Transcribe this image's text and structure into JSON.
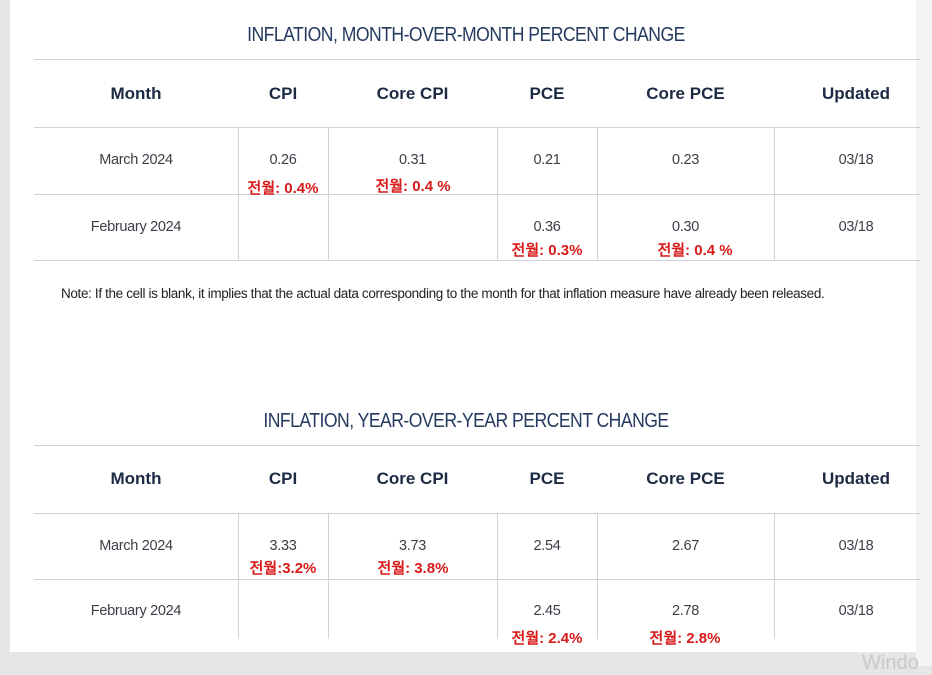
{
  "table1": {
    "title": "INFLATION, MONTH-OVER-MONTH PERCENT CHANGE",
    "headers": [
      "Month",
      "CPI",
      "Core CPI",
      "PCE",
      "Core PCE",
      "Updated"
    ],
    "rows": [
      {
        "month": "March 2024",
        "cpi": "0.26",
        "core_cpi": "0.31",
        "pce": "0.21",
        "core_pce": "0.23",
        "updated": "03/18",
        "cpi_note": "전월: 0.4%",
        "core_cpi_note": "전월: 0.4 %"
      },
      {
        "month": "February 2024",
        "cpi": "",
        "core_cpi": "",
        "pce": "0.36",
        "core_pce": "0.30",
        "updated": "03/18",
        "pce_note": "전월: 0.3%",
        "core_pce_note": "전월: 0.4 %"
      }
    ]
  },
  "note": "Note: If the cell is blank, it implies that the actual data corresponding to the month for that inflation measure have already been released.",
  "table2": {
    "title": "INFLATION, YEAR-OVER-YEAR PERCENT CHANGE",
    "headers": [
      "Month",
      "CPI",
      "Core CPI",
      "PCE",
      "Core PCE",
      "Updated"
    ],
    "rows": [
      {
        "month": "March 2024",
        "cpi": "3.33",
        "core_cpi": "3.73",
        "pce": "2.54",
        "core_pce": "2.67",
        "updated": "03/18",
        "cpi_note": "전월:3.2%",
        "core_cpi_note": "전월: 3.8%"
      },
      {
        "month": "February 2024",
        "cpi": "",
        "core_cpi": "",
        "pce": "2.45",
        "core_pce": "2.78",
        "updated": "03/18",
        "pce_note": "전월: 2.4%",
        "core_pce_note": "전월: 2.8%"
      }
    ]
  },
  "watermark": "Windo",
  "colors": {
    "header_text": "#1d2a44",
    "title_text": "#243a5e",
    "annotation_red": "#d81a1a",
    "rule": "#cfd3d8"
  }
}
